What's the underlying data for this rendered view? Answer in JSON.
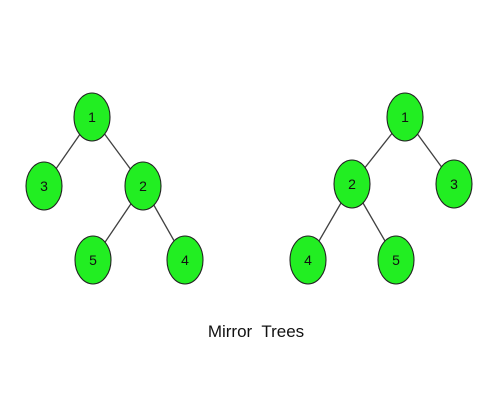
{
  "colors": {
    "node_fill": "#22ee22",
    "node_stroke": "#222222",
    "edge": "#404040",
    "text": "#111111",
    "background": "#ffffff"
  },
  "trees": [
    {
      "name": "original-tree",
      "nodes": [
        {
          "id": "a1",
          "label": "1"
        },
        {
          "id": "a3",
          "label": "3"
        },
        {
          "id": "a2",
          "label": "2"
        },
        {
          "id": "a5",
          "label": "5"
        },
        {
          "id": "a4",
          "label": "4"
        }
      ],
      "edges": [
        [
          "a1",
          "a3"
        ],
        [
          "a1",
          "a2"
        ],
        [
          "a2",
          "a5"
        ],
        [
          "a2",
          "a4"
        ]
      ]
    },
    {
      "name": "mirror-tree",
      "nodes": [
        {
          "id": "b1",
          "label": "1"
        },
        {
          "id": "b2",
          "label": "2"
        },
        {
          "id": "b3",
          "label": "3"
        },
        {
          "id": "b4",
          "label": "4"
        },
        {
          "id": "b5",
          "label": "5"
        }
      ],
      "edges": [
        [
          "b1",
          "b2"
        ],
        [
          "b1",
          "b3"
        ],
        [
          "b2",
          "b4"
        ],
        [
          "b2",
          "b5"
        ]
      ]
    }
  ],
  "caption": "Mirror  Trees"
}
